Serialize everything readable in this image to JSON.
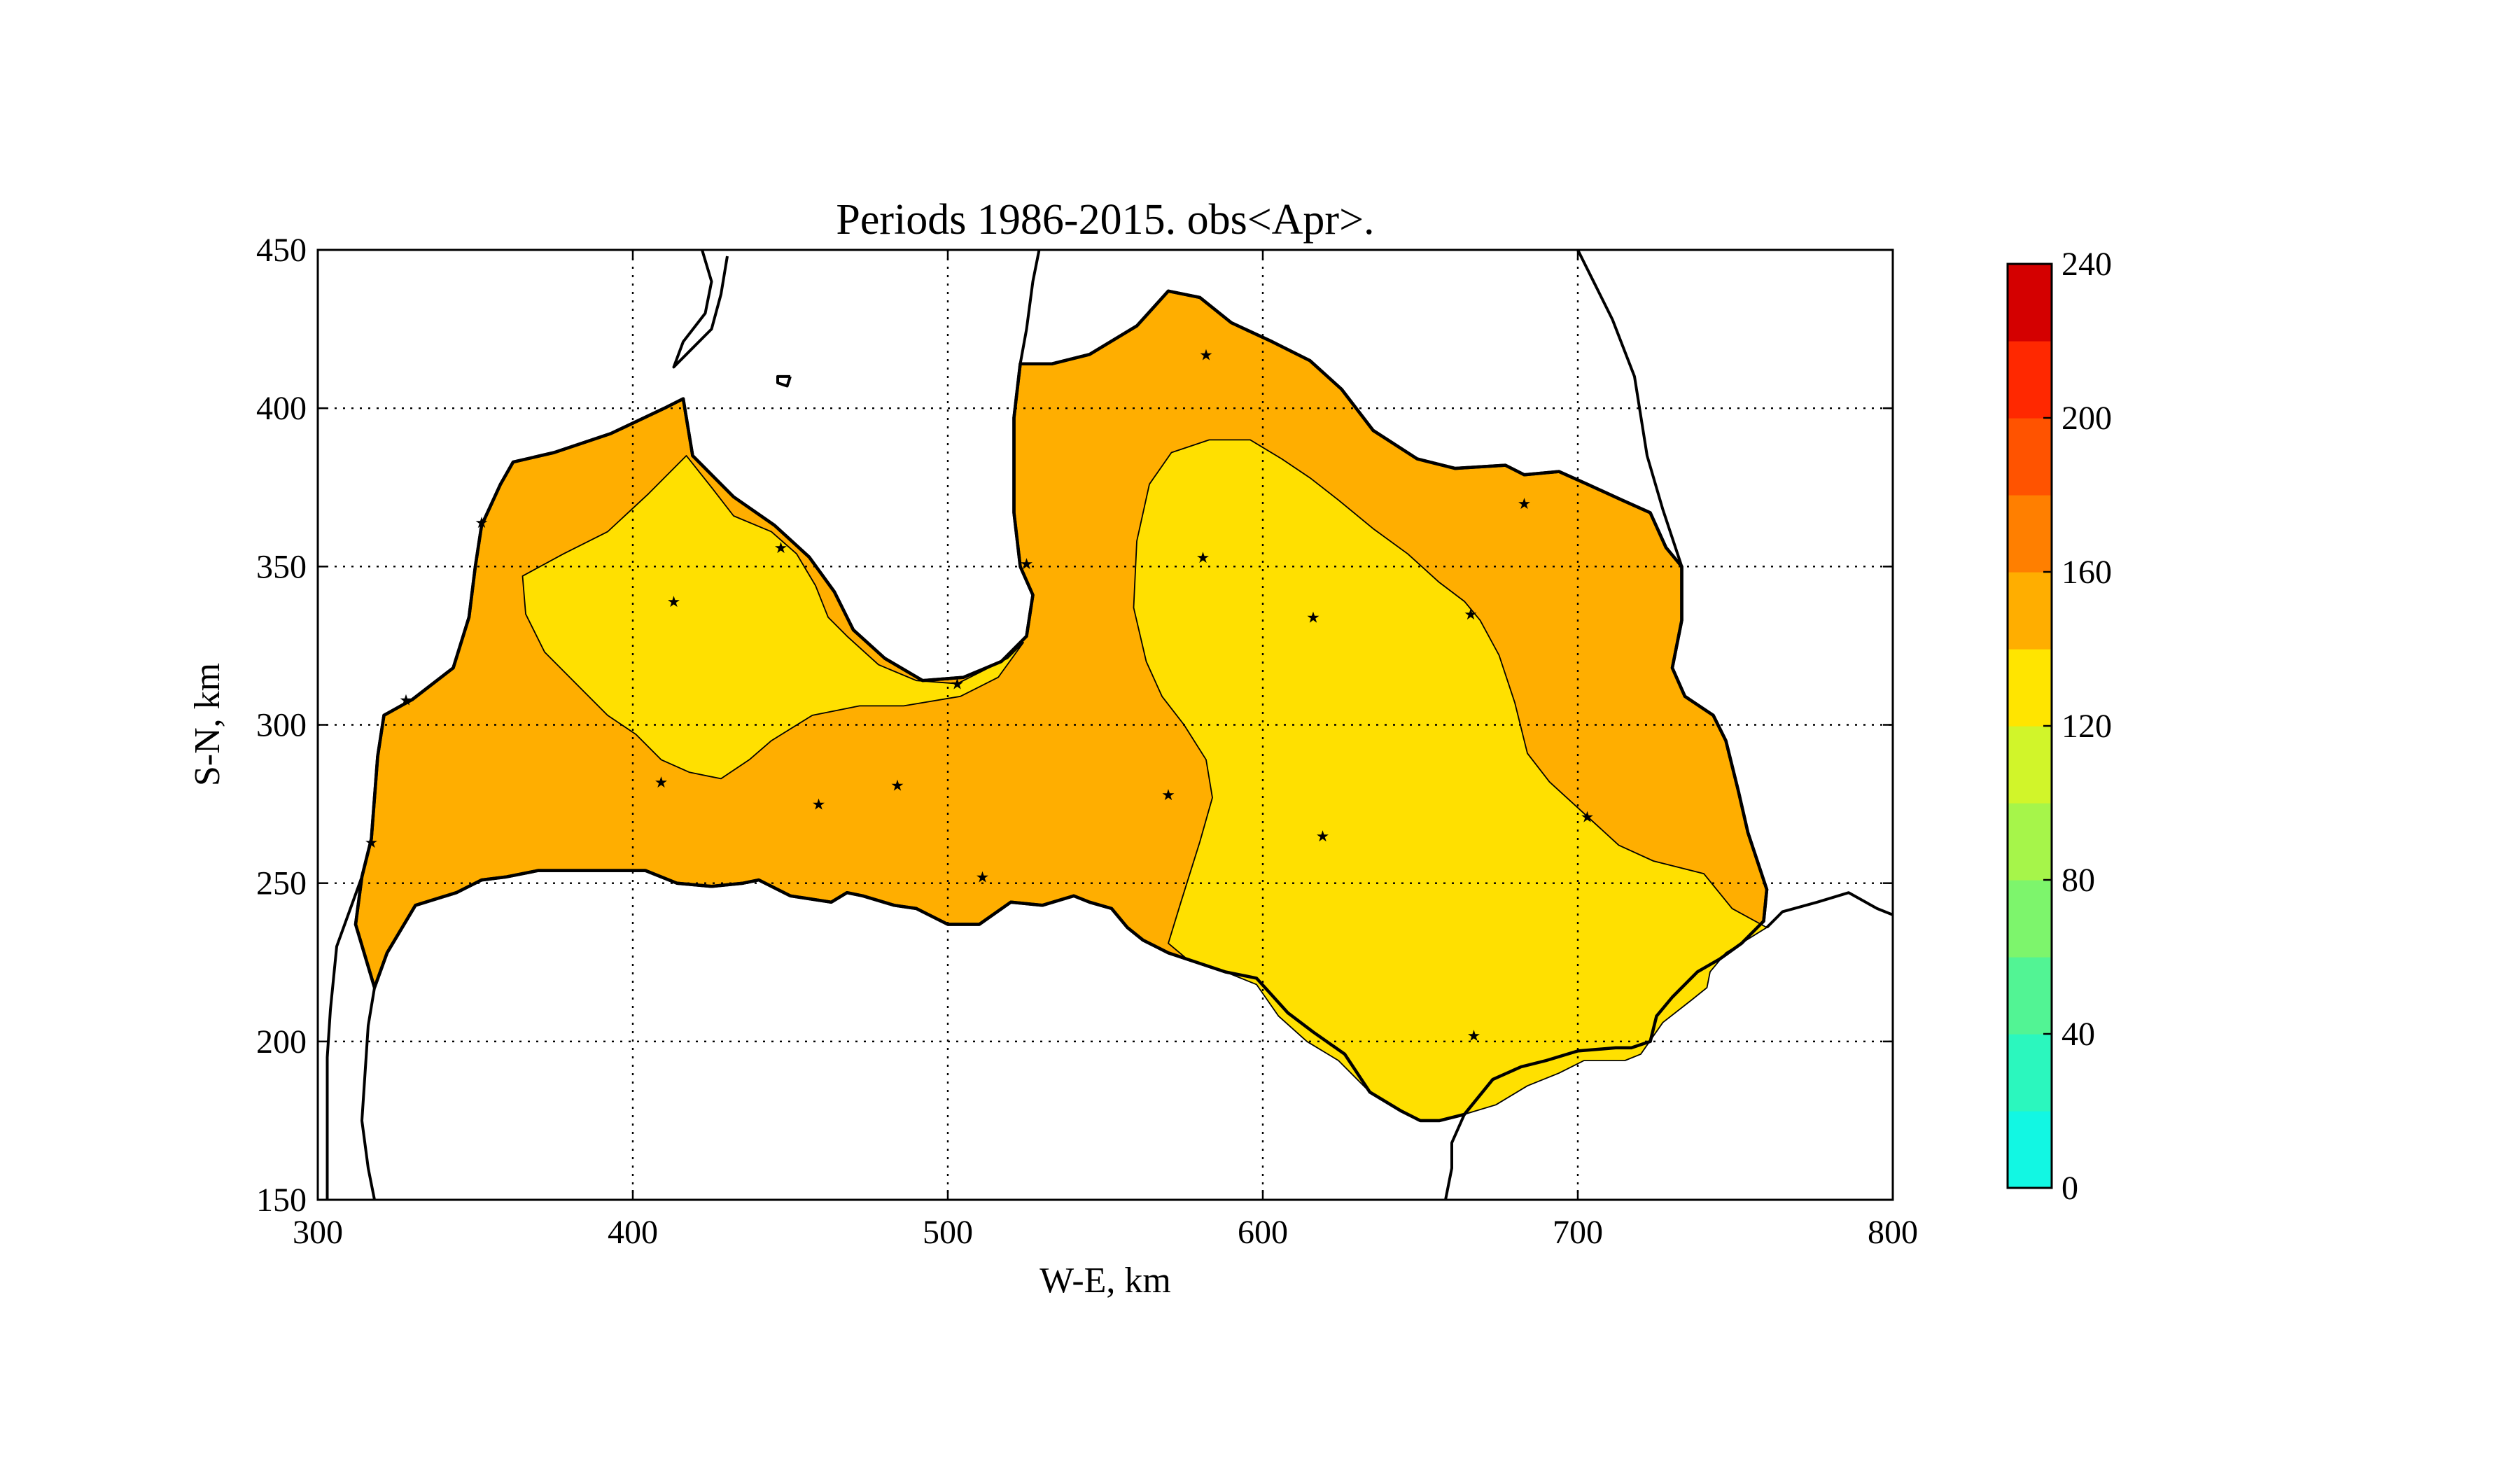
{
  "chart_data": {
    "type": "map",
    "title": "Periods 1986-2015. obs<Apr>.",
    "xlabel": "W-E, km",
    "ylabel": "S-N, km",
    "xlim": [
      300,
      800
    ],
    "ylim": [
      150,
      450
    ],
    "x_ticks": [
      300,
      400,
      500,
      600,
      700,
      800
    ],
    "y_ticks": [
      150,
      200,
      250,
      300,
      350,
      400,
      450
    ],
    "grid": true,
    "colorbar": {
      "min": 0,
      "max": 240,
      "step": 20,
      "tick_values": [
        0,
        40,
        80,
        120,
        160,
        200,
        240
      ],
      "colors": [
        "#12f7e3",
        "#2bf7be",
        "#52f494",
        "#7df56c",
        "#a6f54a",
        "#d1f52a",
        "#ffe500",
        "#ffae00",
        "#ff7f00",
        "#ff5300",
        "#ff2800",
        "#d40000"
      ]
    },
    "regions": [
      {
        "level_range": [
          140,
          160
        ],
        "color": "#ffae00"
      },
      {
        "level_range": [
          120,
          140
        ],
        "color": "#ffe000"
      }
    ],
    "stations": [
      [
        582,
        417
      ],
      [
        683,
        370
      ],
      [
        413,
        339
      ],
      [
        447,
        356
      ],
      [
        525,
        351
      ],
      [
        581,
        353
      ],
      [
        616,
        334
      ],
      [
        666,
        335
      ],
      [
        503,
        313
      ],
      [
        409,
        282
      ],
      [
        459,
        275
      ],
      [
        484,
        281
      ],
      [
        570,
        278
      ],
      [
        619,
        265
      ],
      [
        703,
        271
      ],
      [
        511,
        252
      ],
      [
        667,
        202
      ],
      [
        328,
        308
      ],
      [
        317,
        263
      ],
      [
        352,
        364
      ]
    ]
  }
}
